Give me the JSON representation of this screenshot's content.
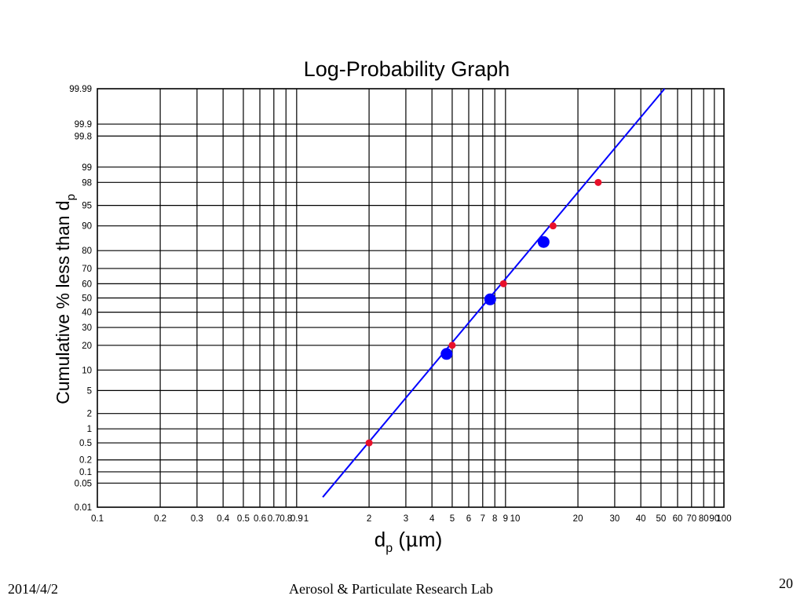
{
  "chart_data": {
    "type": "scatter",
    "title": "Log-Probability Graph",
    "xlabel_main": "d",
    "xlabel_sub": "p",
    "xlabel_unit_open": " (",
    "xlabel_mu": "μ",
    "xlabel_unit_close": "m)",
    "ylabel_main": "Cumulative % less than d",
    "ylabel_sub": "p",
    "x_scale": "log",
    "y_scale": "probability",
    "xlim": [
      0.1,
      100
    ],
    "ylim": [
      0.01,
      99.99
    ],
    "grid": true,
    "x_gridlines": [
      0.2,
      0.3,
      0.4,
      0.5,
      0.6,
      0.7,
      0.8,
      0.9,
      2,
      3,
      4,
      5,
      6,
      7,
      8,
      9,
      20,
      30,
      40,
      50,
      60,
      70,
      80,
      90
    ],
    "x_ticks": [
      "0.1",
      "0.2",
      "0.3",
      "0.4",
      "0.5",
      "0.6",
      "0.7",
      "0.8",
      "0.9",
      "1",
      "2",
      "3",
      "4",
      "5",
      "6",
      "7",
      "8",
      "9",
      "10",
      "20",
      "30",
      "40",
      "50",
      "60",
      "70",
      "80",
      "90",
      "100"
    ],
    "y_ticks": [
      "0.01",
      "0.05",
      "0.1",
      "0.2",
      "0.5",
      "1",
      "2",
      "5",
      "10",
      "20",
      "30",
      "40",
      "50",
      "60",
      "70",
      "80",
      "90",
      "95",
      "98",
      "99",
      "99.8",
      "99.9",
      "99.99"
    ],
    "series": [
      {
        "marker": "small-circle",
        "color": "#e8102a",
        "x": [
          2,
          5,
          8.8,
          15.2,
          25
        ],
        "y": [
          0.5,
          20,
          60,
          90,
          98
        ]
      },
      {
        "marker": "large-circle",
        "color": "#0000ff",
        "x": [
          4.7,
          7.6,
          13.7
        ],
        "y": [
          16,
          49,
          84
        ]
      }
    ],
    "fit_line": {
      "color": "#0000ff",
      "x": [
        1.2,
        52
      ],
      "y": [
        0.02,
        99.99
      ]
    }
  },
  "footer": {
    "date": "2014/4/2",
    "lab": "Aerosol & Particulate Research Lab",
    "page": "20"
  }
}
